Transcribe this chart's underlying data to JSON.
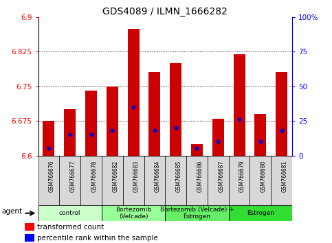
{
  "title": "GDS4089 / ILMN_1666282",
  "samples": [
    "GSM766676",
    "GSM766677",
    "GSM766678",
    "GSM766682",
    "GSM766683",
    "GSM766684",
    "GSM766685",
    "GSM766686",
    "GSM766687",
    "GSM766679",
    "GSM766680",
    "GSM766681"
  ],
  "transformed_counts": [
    6.675,
    6.7,
    6.74,
    6.75,
    6.875,
    6.78,
    6.8,
    6.625,
    6.68,
    6.82,
    6.69,
    6.78
  ],
  "percentile_ranks": [
    5,
    15,
    15,
    18,
    35,
    18,
    20,
    5,
    10,
    26,
    10,
    18
  ],
  "y_min": 6.6,
  "y_max": 6.9,
  "y_ticks": [
    6.6,
    6.675,
    6.75,
    6.825,
    6.9
  ],
  "y_tick_labels": [
    "6.6",
    "6.675",
    "6.75",
    "6.825",
    "6.9"
  ],
  "right_y_ticks": [
    0,
    25,
    50,
    75,
    100
  ],
  "right_y_labels": [
    "0",
    "25",
    "50",
    "75",
    "100%"
  ],
  "bar_color": "#cc0000",
  "dot_color": "#0000cc",
  "groups": [
    {
      "label": "control",
      "n": 3,
      "color": "#ccffcc"
    },
    {
      "label": "Bortezomib\n(Velcade)",
      "n": 3,
      "color": "#99ff99"
    },
    {
      "label": "Bortezomib (Velcade) +\nEstrogen",
      "n": 3,
      "color": "#66ee66"
    },
    {
      "label": "Estrogen",
      "n": 3,
      "color": "#33dd33"
    }
  ],
  "agent_label": "agent",
  "legend_red": "transformed count",
  "legend_blue": "percentile rank within the sample",
  "title_fontsize": 10,
  "bar_width": 0.55,
  "dot_size": 3.5
}
